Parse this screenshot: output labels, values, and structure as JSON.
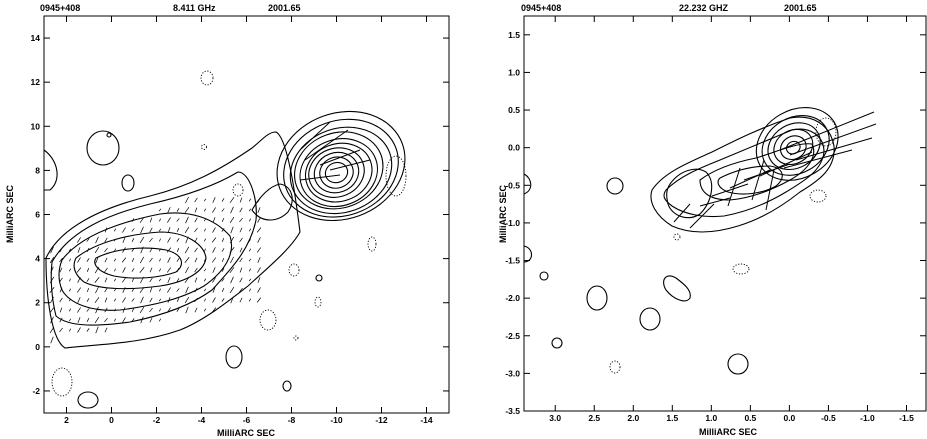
{
  "chart_data": [
    {
      "type": "contour",
      "header": {
        "source": "0945+408",
        "frequency": "8.411 GHz",
        "epoch": "2001.65"
      },
      "xlabel": "MilliARC SEC",
      "ylabel": "MilliARC SEC",
      "xlim": [
        3,
        -15
      ],
      "ylim": [
        -3,
        15
      ],
      "xticks": [
        2,
        0,
        -2,
        -4,
        -6,
        -8,
        -10,
        -12,
        -14
      ],
      "yticks": [
        -2,
        0,
        2,
        4,
        6,
        8,
        10,
        12,
        14
      ],
      "core": {
        "x": -10,
        "y": 8
      },
      "contours": [
        {
          "cx": -10.2,
          "cy": 8.2,
          "rx": 2.9,
          "ry": 2.4,
          "rot": -20
        },
        {
          "cx": -10.2,
          "cy": 8.1,
          "rx": 2.6,
          "ry": 2.15,
          "rot": -20
        },
        {
          "cx": -10.2,
          "cy": 8.0,
          "rx": 2.3,
          "ry": 1.9,
          "rot": -20
        },
        {
          "cx": -10.1,
          "cy": 8.0,
          "rx": 2.0,
          "ry": 1.7,
          "rot": -20
        },
        {
          "cx": -10.1,
          "cy": 7.9,
          "rx": 1.75,
          "ry": 1.5,
          "rot": -20
        },
        {
          "cx": -10.1,
          "cy": 7.9,
          "rx": 1.5,
          "ry": 1.3,
          "rot": -20
        },
        {
          "cx": -10.0,
          "cy": 7.9,
          "rx": 1.25,
          "ry": 1.1,
          "rot": -20
        },
        {
          "cx": -10.0,
          "cy": 7.9,
          "rx": 1.0,
          "ry": 0.9,
          "rot": -20
        },
        {
          "cx": -10.0,
          "cy": 7.9,
          "rx": 0.75,
          "ry": 0.7,
          "rot": -20
        },
        {
          "cx": -10.0,
          "cy": 7.9,
          "rx": 0.5,
          "ry": 0.45,
          "rot": -20
        }
      ]
    },
    {
      "type": "contour",
      "header": {
        "source": "0945+408",
        "frequency": "22.232 GHZ",
        "epoch": "2001.65"
      },
      "xlabel": "MilliARC SEC",
      "ylabel": "MilliARC SEC",
      "xlim": [
        3.4,
        -1.75
      ],
      "ylim": [
        -3.5,
        1.75
      ],
      "xticks": [
        3.0,
        2.5,
        2.0,
        1.5,
        1.0,
        0.5,
        0.0,
        -0.5,
        -1.0,
        -1.5
      ],
      "yticks": [
        1.5,
        1.0,
        0.5,
        0.0,
        -0.5,
        -1.0,
        -1.5,
        -2.0,
        -2.5,
        -3.0,
        -3.5
      ],
      "xtick_labels": [
        "3.0",
        "2.5",
        "2.0",
        "1.5",
        "1.0",
        "0.5",
        "0.0",
        "-0.5",
        "-1.0",
        "-1.5"
      ],
      "ytick_labels": [
        "1.5",
        "1.0",
        "0.5",
        "0.0",
        "-0.5",
        "-1.0",
        "-1.5",
        "-2.0",
        "-2.5",
        "-3.0",
        "-3.5"
      ],
      "core": {
        "x": -0.05,
        "y": 0.0
      },
      "contours": [
        {
          "cx": -0.1,
          "cy": 0.05,
          "rx": 0.55,
          "ry": 0.45,
          "rot": -30
        },
        {
          "cx": -0.08,
          "cy": 0.03,
          "rx": 0.45,
          "ry": 0.37,
          "rot": -30
        },
        {
          "cx": -0.06,
          "cy": 0.02,
          "rx": 0.35,
          "ry": 0.29,
          "rot": -30
        },
        {
          "cx": -0.05,
          "cy": 0.01,
          "rx": 0.26,
          "ry": 0.22,
          "rot": -30
        },
        {
          "cx": -0.05,
          "cy": 0.0,
          "rx": 0.17,
          "ry": 0.15,
          "rot": -30
        },
        {
          "cx": -0.05,
          "cy": 0.0,
          "rx": 0.09,
          "ry": 0.08,
          "rot": -30
        }
      ]
    }
  ]
}
